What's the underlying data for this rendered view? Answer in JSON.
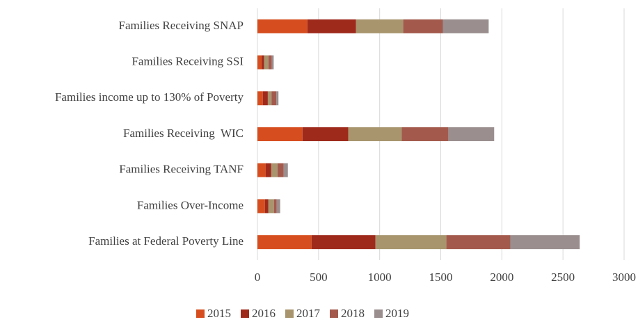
{
  "chart_data": {
    "type": "stacked_barh",
    "categories": [
      "Families Receiving SNAP",
      "Families Receiving SSI",
      "Families income up to 130% of Poverty",
      "Families Receiving  WIC",
      "Families Receiving TANF",
      "Families Over-Income",
      "Families at Federal Poverty Line"
    ],
    "series": [
      {
        "name": "2015",
        "color": "#d64e1f",
        "values": [
          409,
          35,
          45,
          369,
          68,
          62,
          443
        ]
      },
      {
        "name": "2016",
        "color": "#9e2a1c",
        "values": [
          398,
          20,
          40,
          375,
          45,
          28,
          523
        ]
      },
      {
        "name": "2017",
        "color": "#a8956e",
        "values": [
          386,
          35,
          30,
          437,
          51,
          45,
          580
        ]
      },
      {
        "name": "2018",
        "color": "#a35a4c",
        "values": [
          324,
          28,
          40,
          381,
          51,
          23,
          523
        ]
      },
      {
        "name": "2019",
        "color": "#9a8e8e",
        "values": [
          375,
          15,
          17,
          375,
          34,
          28,
          568
        ]
      }
    ],
    "xlim": [
      0,
      3000
    ],
    "xticks": [
      0,
      500,
      1000,
      1500,
      2000,
      2500,
      3000
    ],
    "grid": true,
    "legend": "bottom"
  }
}
